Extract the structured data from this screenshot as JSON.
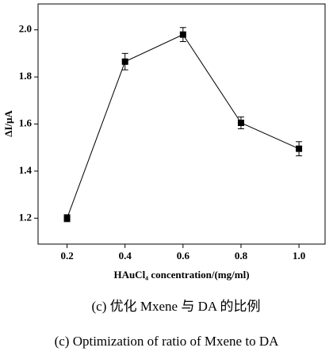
{
  "chart_data": {
    "type": "line",
    "x_label": "HAuCl₄ concentration/(mg/ml)",
    "y_label": "ΔI/μA",
    "caption_cn": "(c) 优化 Mxene 与 DA 的比例",
    "caption_en": "(c) Optimization of ratio of Mxene to DA",
    "x": [
      0.2,
      0.4,
      0.6,
      0.8,
      {
        "value": 1.0,
        "label": "1.0"
      }
    ],
    "values": [
      1.2,
      1.865,
      1.98,
      1.605,
      1.495
    ],
    "errors": [
      0.015,
      0.035,
      0.03,
      0.025,
      0.03
    ],
    "color": "#000000",
    "xlim": [
      0.1,
      1.09
    ],
    "ylim": [
      1.09,
      2.11
    ],
    "xticks": [
      0.2,
      0.4,
      0.6,
      0.8,
      {
        "value": 1.0,
        "label": "1.0"
      }
    ],
    "yticks": [
      1.2,
      1.4,
      1.6,
      1.8,
      {
        "value": 2.0,
        "label": "2.0"
      }
    ],
    "grid": false
  }
}
